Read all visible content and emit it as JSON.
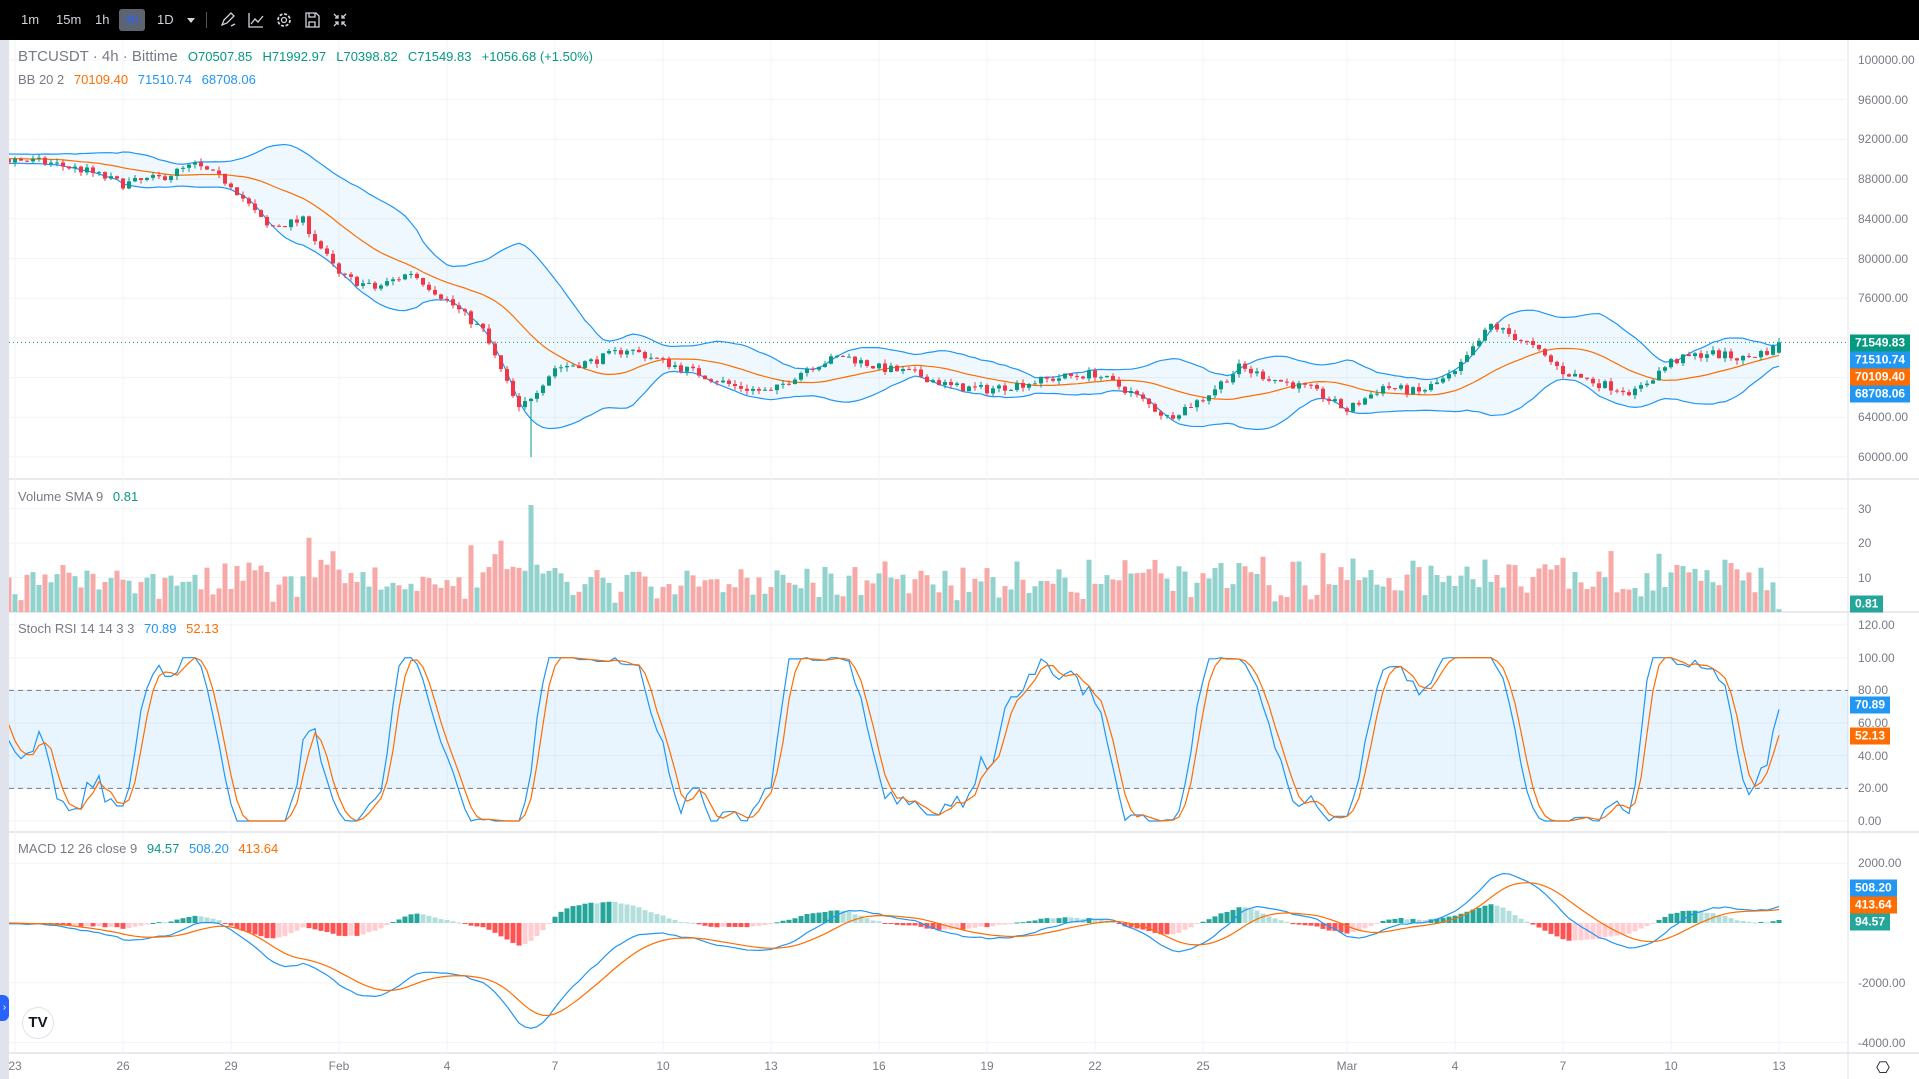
{
  "toolbar": {
    "timeframes": [
      "1m",
      "15m",
      "1h",
      "4h",
      "1D"
    ],
    "active": "4h",
    "icons": [
      "timeframe-dropdown-icon",
      "drawing-pencil-icon",
      "indicators-icon",
      "settings-gear-icon",
      "save-icon",
      "collapse-icon"
    ]
  },
  "legend": {
    "symbol": "BTCUSDT · 4h · Bittime",
    "open": "O70507.85",
    "high": "H71992.97",
    "low": "L70398.82",
    "close": "C71549.83",
    "change": "+1056.68 (+1.50%)",
    "bb_label": "BB 20 2",
    "bb_basis": "70109.40",
    "bb_upper": "71510.74",
    "bb_lower": "68708.06",
    "vol_label": "Volume SMA 9",
    "vol_value": "0.81",
    "stoch_label": "Stoch RSI 14 14 3 3",
    "stoch_k": "70.89",
    "stoch_d": "52.13",
    "macd_label": "MACD 12 26 close 9",
    "macd_hist": "94.57",
    "macd_line": "508.20",
    "macd_signal": "413.64"
  },
  "colors": {
    "up": "#089981",
    "down": "#f23645",
    "vol_up": "#92d2cc",
    "vol_down": "#f7a9a7",
    "blue": "#2196f3",
    "orange": "#ff6d00",
    "hist_up": "#26a69a",
    "hist_up_fade": "#b2dfdb",
    "hist_down": "#ff5252",
    "hist_down_fade": "#ffcdd2"
  },
  "chart_data": {
    "type": "candlestick",
    "interval": "4h",
    "x_start": "Jan 23",
    "x_end": "Mar 13",
    "daily_close_approx": [
      90000,
      89600,
      88800,
      87500,
      88100,
      89400,
      87500,
      83200,
      83800,
      78300,
      77000,
      78600,
      75800,
      72700,
      64700,
      69000,
      69600,
      70900,
      69600,
      68400,
      67100,
      66500,
      69000,
      70200,
      69000,
      68400,
      67100,
      66800,
      67400,
      68000,
      68400,
      66500,
      64000,
      65900,
      69000,
      67800,
      66800,
      64700,
      67100,
      66500,
      68400,
      73300,
      71500,
      68600,
      67400,
      66500,
      69600,
      70500,
      69900,
      71100
    ],
    "last_candle": {
      "open": 70507.85,
      "high": 71992.97,
      "low": 70398.82,
      "close": 71549.83
    },
    "period_low": 60000,
    "volume_spike": 31,
    "price_axis": {
      "ticks": [
        "100000.00",
        "96000.00",
        "92000.00",
        "88000.00",
        "84000.00",
        "80000.00",
        "76000.00",
        "64000.00",
        "60000.00"
      ],
      "range": [
        58000,
        101000
      ]
    },
    "price_tags": [
      "71549.83",
      "71510.74",
      "70109.40",
      "68708.06"
    ],
    "volume_axis": {
      "ticks": [
        "30",
        "20",
        "10"
      ]
    },
    "stoch_axis": {
      "ticks": [
        "120.00",
        "100.00",
        "80.00",
        "60.00",
        "40.00",
        "20.00",
        "0.00"
      ],
      "bands": [
        20,
        80
      ]
    },
    "stoch_tags": [
      "70.89",
      "52.13"
    ],
    "macd_axis": {
      "ticks": [
        "2000.00",
        "-2000.00",
        "-4000.00"
      ]
    },
    "macd_tags": [
      "508.20",
      "413.64",
      "94.57"
    ],
    "time_labels": [
      "23",
      "26",
      "29",
      "Feb",
      "4",
      "7",
      "10",
      "13",
      "16",
      "19",
      "22",
      "25",
      "Mar",
      "4",
      "7",
      "10",
      "13"
    ]
  }
}
